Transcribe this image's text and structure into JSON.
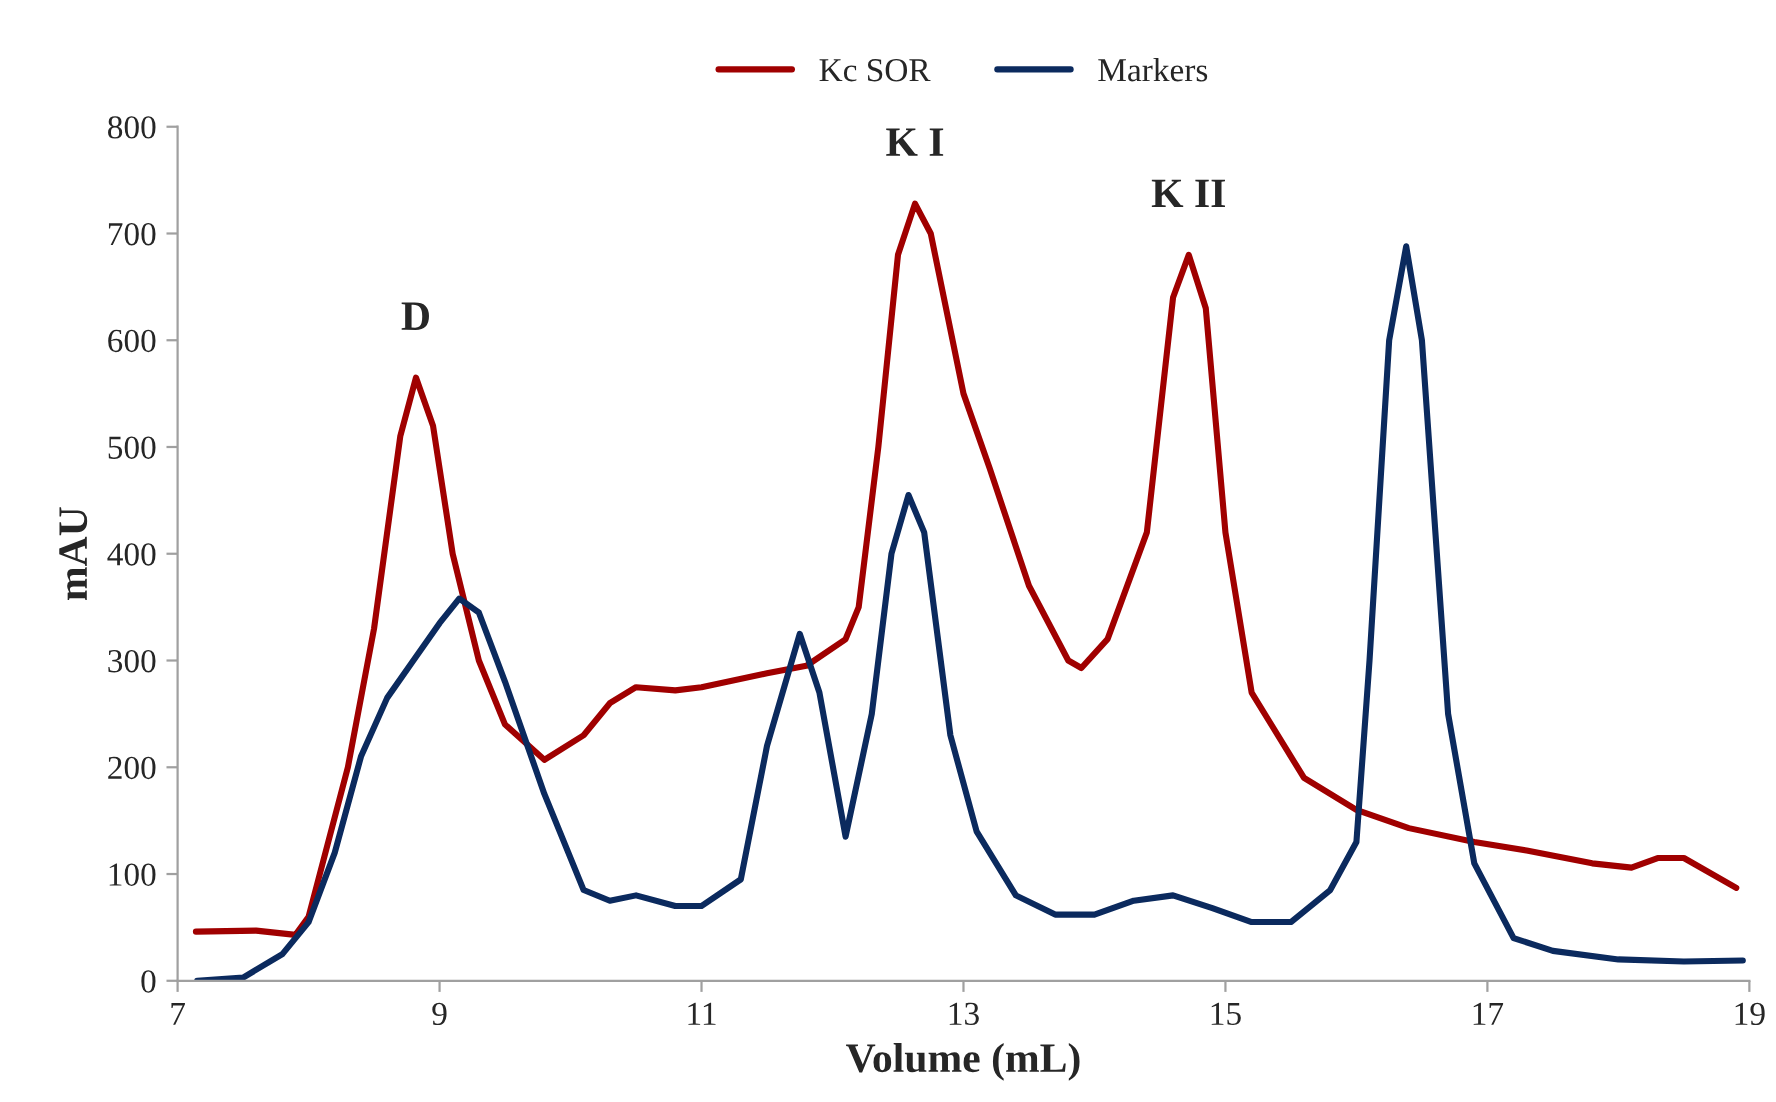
{
  "chart_data": {
    "type": "line",
    "xlabel": "Volume (mL)",
    "ylabel": "mAU",
    "xlim": [
      7,
      19
    ],
    "xticks": [
      7,
      9,
      11,
      13,
      15,
      17,
      19
    ],
    "ylim": [
      0,
      800
    ],
    "yticks": [
      0,
      100,
      200,
      300,
      400,
      500,
      600,
      700,
      800
    ],
    "grid": false,
    "legend": "top",
    "marker": "none",
    "line_style": "solid",
    "series": [
      {
        "name": "Kc SOR",
        "color": "#a00000",
        "x": [
          7.14,
          7.6,
          7.9,
          8.0,
          8.3,
          8.5,
          8.7,
          8.82,
          8.95,
          9.1,
          9.3,
          9.5,
          9.8,
          10.1,
          10.3,
          10.5,
          10.8,
          11.0,
          11.5,
          11.8,
          12.1,
          12.2,
          12.35,
          12.5,
          12.63,
          12.75,
          13.0,
          13.2,
          13.5,
          13.8,
          13.9,
          14.1,
          14.4,
          14.6,
          14.72,
          14.85,
          15.0,
          15.2,
          15.6,
          16.0,
          16.4,
          16.9,
          17.3,
          17.8,
          18.1,
          18.3,
          18.5,
          18.9
        ],
        "values": [
          46,
          47,
          43,
          60,
          200,
          330,
          510,
          565,
          520,
          400,
          300,
          240,
          207,
          230,
          260,
          275,
          272,
          275,
          288,
          295,
          320,
          350,
          500,
          680,
          728,
          700,
          550,
          480,
          370,
          300,
          293,
          320,
          420,
          640,
          680,
          630,
          420,
          270,
          190,
          160,
          143,
          130,
          122,
          110,
          106,
          115,
          115,
          87
        ]
      },
      {
        "name": "Markers",
        "color": "#0b2a5e",
        "x": [
          7.15,
          7.5,
          7.8,
          8.0,
          8.2,
          8.4,
          8.6,
          8.8,
          9.0,
          9.15,
          9.3,
          9.5,
          9.8,
          10.1,
          10.3,
          10.5,
          10.8,
          11.0,
          11.3,
          11.5,
          11.75,
          11.9,
          12.1,
          12.3,
          12.45,
          12.58,
          12.7,
          12.9,
          13.1,
          13.4,
          13.7,
          14.0,
          14.3,
          14.6,
          14.9,
          15.2,
          15.5,
          15.8,
          16.0,
          16.1,
          16.25,
          16.38,
          16.5,
          16.7,
          16.9,
          17.2,
          17.5,
          18.0,
          18.5,
          18.95
        ],
        "values": [
          0,
          3,
          25,
          55,
          120,
          210,
          265,
          300,
          335,
          358,
          345,
          280,
          175,
          85,
          75,
          80,
          70,
          70,
          95,
          220,
          325,
          270,
          135,
          250,
          400,
          455,
          420,
          230,
          140,
          80,
          62,
          62,
          75,
          80,
          68,
          55,
          55,
          85,
          130,
          300,
          600,
          688,
          600,
          250,
          110,
          40,
          28,
          20,
          18,
          19
        ]
      }
    ],
    "annotations": [
      {
        "text": "D",
        "x": 8.82,
        "y": 565
      },
      {
        "text": "K I",
        "x": 12.63,
        "y": 728
      },
      {
        "text": "K II",
        "x": 14.72,
        "y": 680
      }
    ]
  }
}
